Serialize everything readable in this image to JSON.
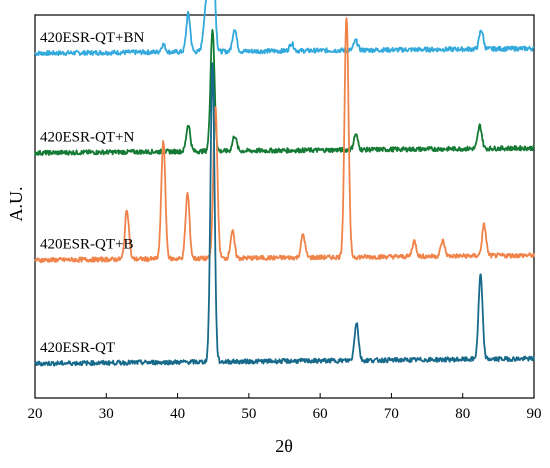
{
  "chart_data": {
    "type": "line",
    "title": "",
    "xlabel": "2θ",
    "ylabel": "A.U.",
    "xlim": [
      20,
      90
    ],
    "xticks": [
      20,
      30,
      40,
      50,
      60,
      70,
      80,
      90
    ],
    "xtick_labels": [
      "20",
      "30",
      "40",
      "50",
      "60",
      "70",
      "80",
      "90"
    ],
    "y_ticks_shown": false,
    "grid": false,
    "legend": "none (series labeled inline, left side)",
    "series": [
      {
        "name": "420ESR-QT+BN",
        "color": "#33a9dc",
        "baseline": 0.9,
        "peaks": [
          [
            38.0,
            0.02
          ],
          [
            41.5,
            0.1
          ],
          [
            43.8,
            0.07
          ],
          [
            44.3,
            0.14
          ],
          [
            45.0,
            0.23
          ],
          [
            48.0,
            0.06
          ],
          [
            56.0,
            0.02
          ],
          [
            65.0,
            0.025
          ],
          [
            82.6,
            0.05
          ]
        ]
      },
      {
        "name": "420ESR-QT+N",
        "color": "#147a34",
        "baseline": 0.64,
        "peaks": [
          [
            41.5,
            0.07
          ],
          [
            44.9,
            0.32
          ],
          [
            48.0,
            0.04
          ],
          [
            65.0,
            0.04
          ],
          [
            82.4,
            0.06
          ]
        ]
      },
      {
        "name": "420ESR-QT+B",
        "color": "#f0834a",
        "baseline": 0.36,
        "peaks": [
          [
            32.9,
            0.13
          ],
          [
            38.0,
            0.31
          ],
          [
            41.4,
            0.17
          ],
          [
            45.3,
            0.4
          ],
          [
            47.7,
            0.07
          ],
          [
            57.6,
            0.06
          ],
          [
            63.7,
            0.63
          ],
          [
            73.2,
            0.04
          ],
          [
            77.2,
            0.04
          ],
          [
            83.0,
            0.08
          ]
        ]
      },
      {
        "name": "420ESR-QT",
        "color": "#186a8a",
        "baseline": 0.09,
        "peaks": [
          [
            44.9,
            0.78
          ],
          [
            65.1,
            0.1
          ],
          [
            82.5,
            0.22
          ]
        ]
      }
    ]
  }
}
